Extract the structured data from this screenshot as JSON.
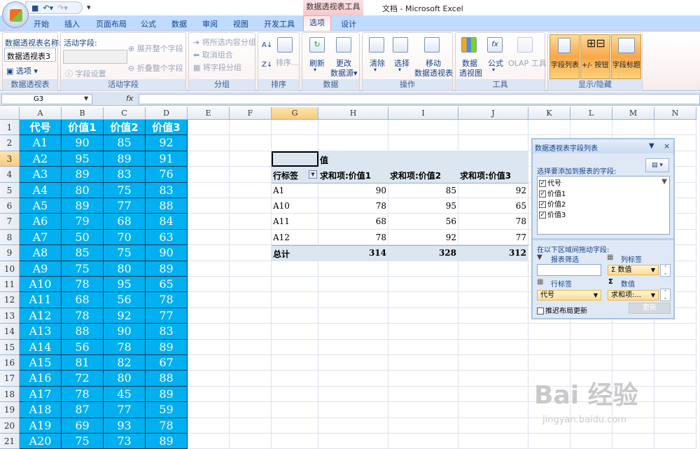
{
  "app_title": "文档 - Microsoft Excel",
  "context_tab_title": "数据透视表工具",
  "tabs": [
    "开始",
    "插入",
    "页面布局",
    "公式",
    "数据",
    "审阅",
    "视图",
    "开发工具",
    "选项",
    "设计"
  ],
  "active_tab": "选项",
  "ribbon": {
    "pivot_table": {
      "label": "数据透视表",
      "name_label": "数据透视表名称:",
      "name_value": "数据透视表3",
      "options": "选项"
    },
    "active_field": {
      "label": "活动字段",
      "field_label": "活动字段:",
      "field_settings": "字段设置",
      "expand": "展开整个字段",
      "collapse": "折叠整个字段"
    },
    "group": {
      "label": "分组",
      "group_selection": "将所选内容分组",
      "ungroup": "取消组合",
      "group_field": "将字段分组"
    },
    "sort": {
      "label": "排序",
      "sort": "排序..."
    },
    "data": {
      "label": "数据",
      "refresh": "刷新",
      "change_source_1": "更改",
      "change_source_2": "数据源"
    },
    "actions": {
      "label": "操作",
      "clear": "清除",
      "select": "选择",
      "move_1": "移动",
      "move_2": "数据透视表"
    },
    "tools": {
      "label": "工具",
      "pivot_chart_1": "数据",
      "pivot_chart_2": "透视图",
      "formulas": "公式",
      "olap": "OLAP 工具"
    },
    "show_hide": {
      "label": "显示/隐藏",
      "field_list": "字段列表",
      "buttons": "+/- 按钮",
      "headers": "字段标题"
    }
  },
  "formula_bar": {
    "name_box": "G3",
    "fx": "fx",
    "value": ""
  },
  "columns": [
    "A",
    "B",
    "C",
    "D",
    "E",
    "F",
    "G",
    "H",
    "I",
    "J",
    "K",
    "L",
    "M",
    "N"
  ],
  "source_table": {
    "headers": [
      "代号",
      "价值1",
      "价值2",
      "价值3"
    ],
    "rows": [
      [
        "A1",
        "90",
        "85",
        "92"
      ],
      [
        "A2",
        "95",
        "89",
        "91"
      ],
      [
        "A3",
        "89",
        "83",
        "76"
      ],
      [
        "A4",
        "80",
        "75",
        "83"
      ],
      [
        "A5",
        "89",
        "77",
        "88"
      ],
      [
        "A6",
        "79",
        "68",
        "84"
      ],
      [
        "A7",
        "50",
        "70",
        "63"
      ],
      [
        "A8",
        "85",
        "75",
        "90"
      ],
      [
        "A9",
        "75",
        "80",
        "89"
      ],
      [
        "A10",
        "78",
        "95",
        "65"
      ],
      [
        "A11",
        "68",
        "56",
        "78"
      ],
      [
        "A12",
        "78",
        "92",
        "77"
      ],
      [
        "A13",
        "88",
        "90",
        "83"
      ],
      [
        "A14",
        "56",
        "78",
        "89"
      ],
      [
        "A15",
        "81",
        "82",
        "67"
      ],
      [
        "A16",
        "72",
        "80",
        "88"
      ],
      [
        "A17",
        "78",
        "45",
        "89"
      ],
      [
        "A18",
        "87",
        "77",
        "59"
      ],
      [
        "A19",
        "69",
        "93",
        "78"
      ],
      [
        "A20",
        "75",
        "73",
        "89"
      ]
    ]
  },
  "pivot": {
    "values_label": "值",
    "row_label": "行标签",
    "headers": [
      "求和项:价值1",
      "求和项:价值2",
      "求和项:价值3"
    ],
    "rows": [
      [
        "A1",
        "90",
        "85",
        "92"
      ],
      [
        "A10",
        "78",
        "95",
        "65"
      ],
      [
        "A11",
        "68",
        "56",
        "78"
      ],
      [
        "A12",
        "78",
        "92",
        "77"
      ]
    ],
    "total": [
      "总计",
      "314",
      "328",
      "312"
    ],
    "header_bg": "#dce6f1"
  },
  "field_list": {
    "title": "数据透视表字段列表",
    "choose_label": "选择要添加到报表的字段:",
    "fields": [
      {
        "name": "代号",
        "checked": true
      },
      {
        "name": "价值1",
        "checked": true
      },
      {
        "name": "价值2",
        "checked": true
      },
      {
        "name": "价值3",
        "checked": true
      }
    ],
    "drag_label": "在以下区域间拖动字段:",
    "report_filter": "报表筛选",
    "column_labels": "列标签",
    "column_item": "数值",
    "row_labels": "行标签",
    "row_item": "代号",
    "values": "数值",
    "values_item": "求和项:...",
    "defer": "推迟布局更新",
    "update": "更新"
  },
  "watermark": {
    "brand": "Bai 经验",
    "url": "jingyan.baidu.com"
  },
  "colors": {
    "accent_cell": "#00b0f0",
    "ribbon_tab_bar": "#bfdbff",
    "selected_header": "#f9cb7a"
  }
}
